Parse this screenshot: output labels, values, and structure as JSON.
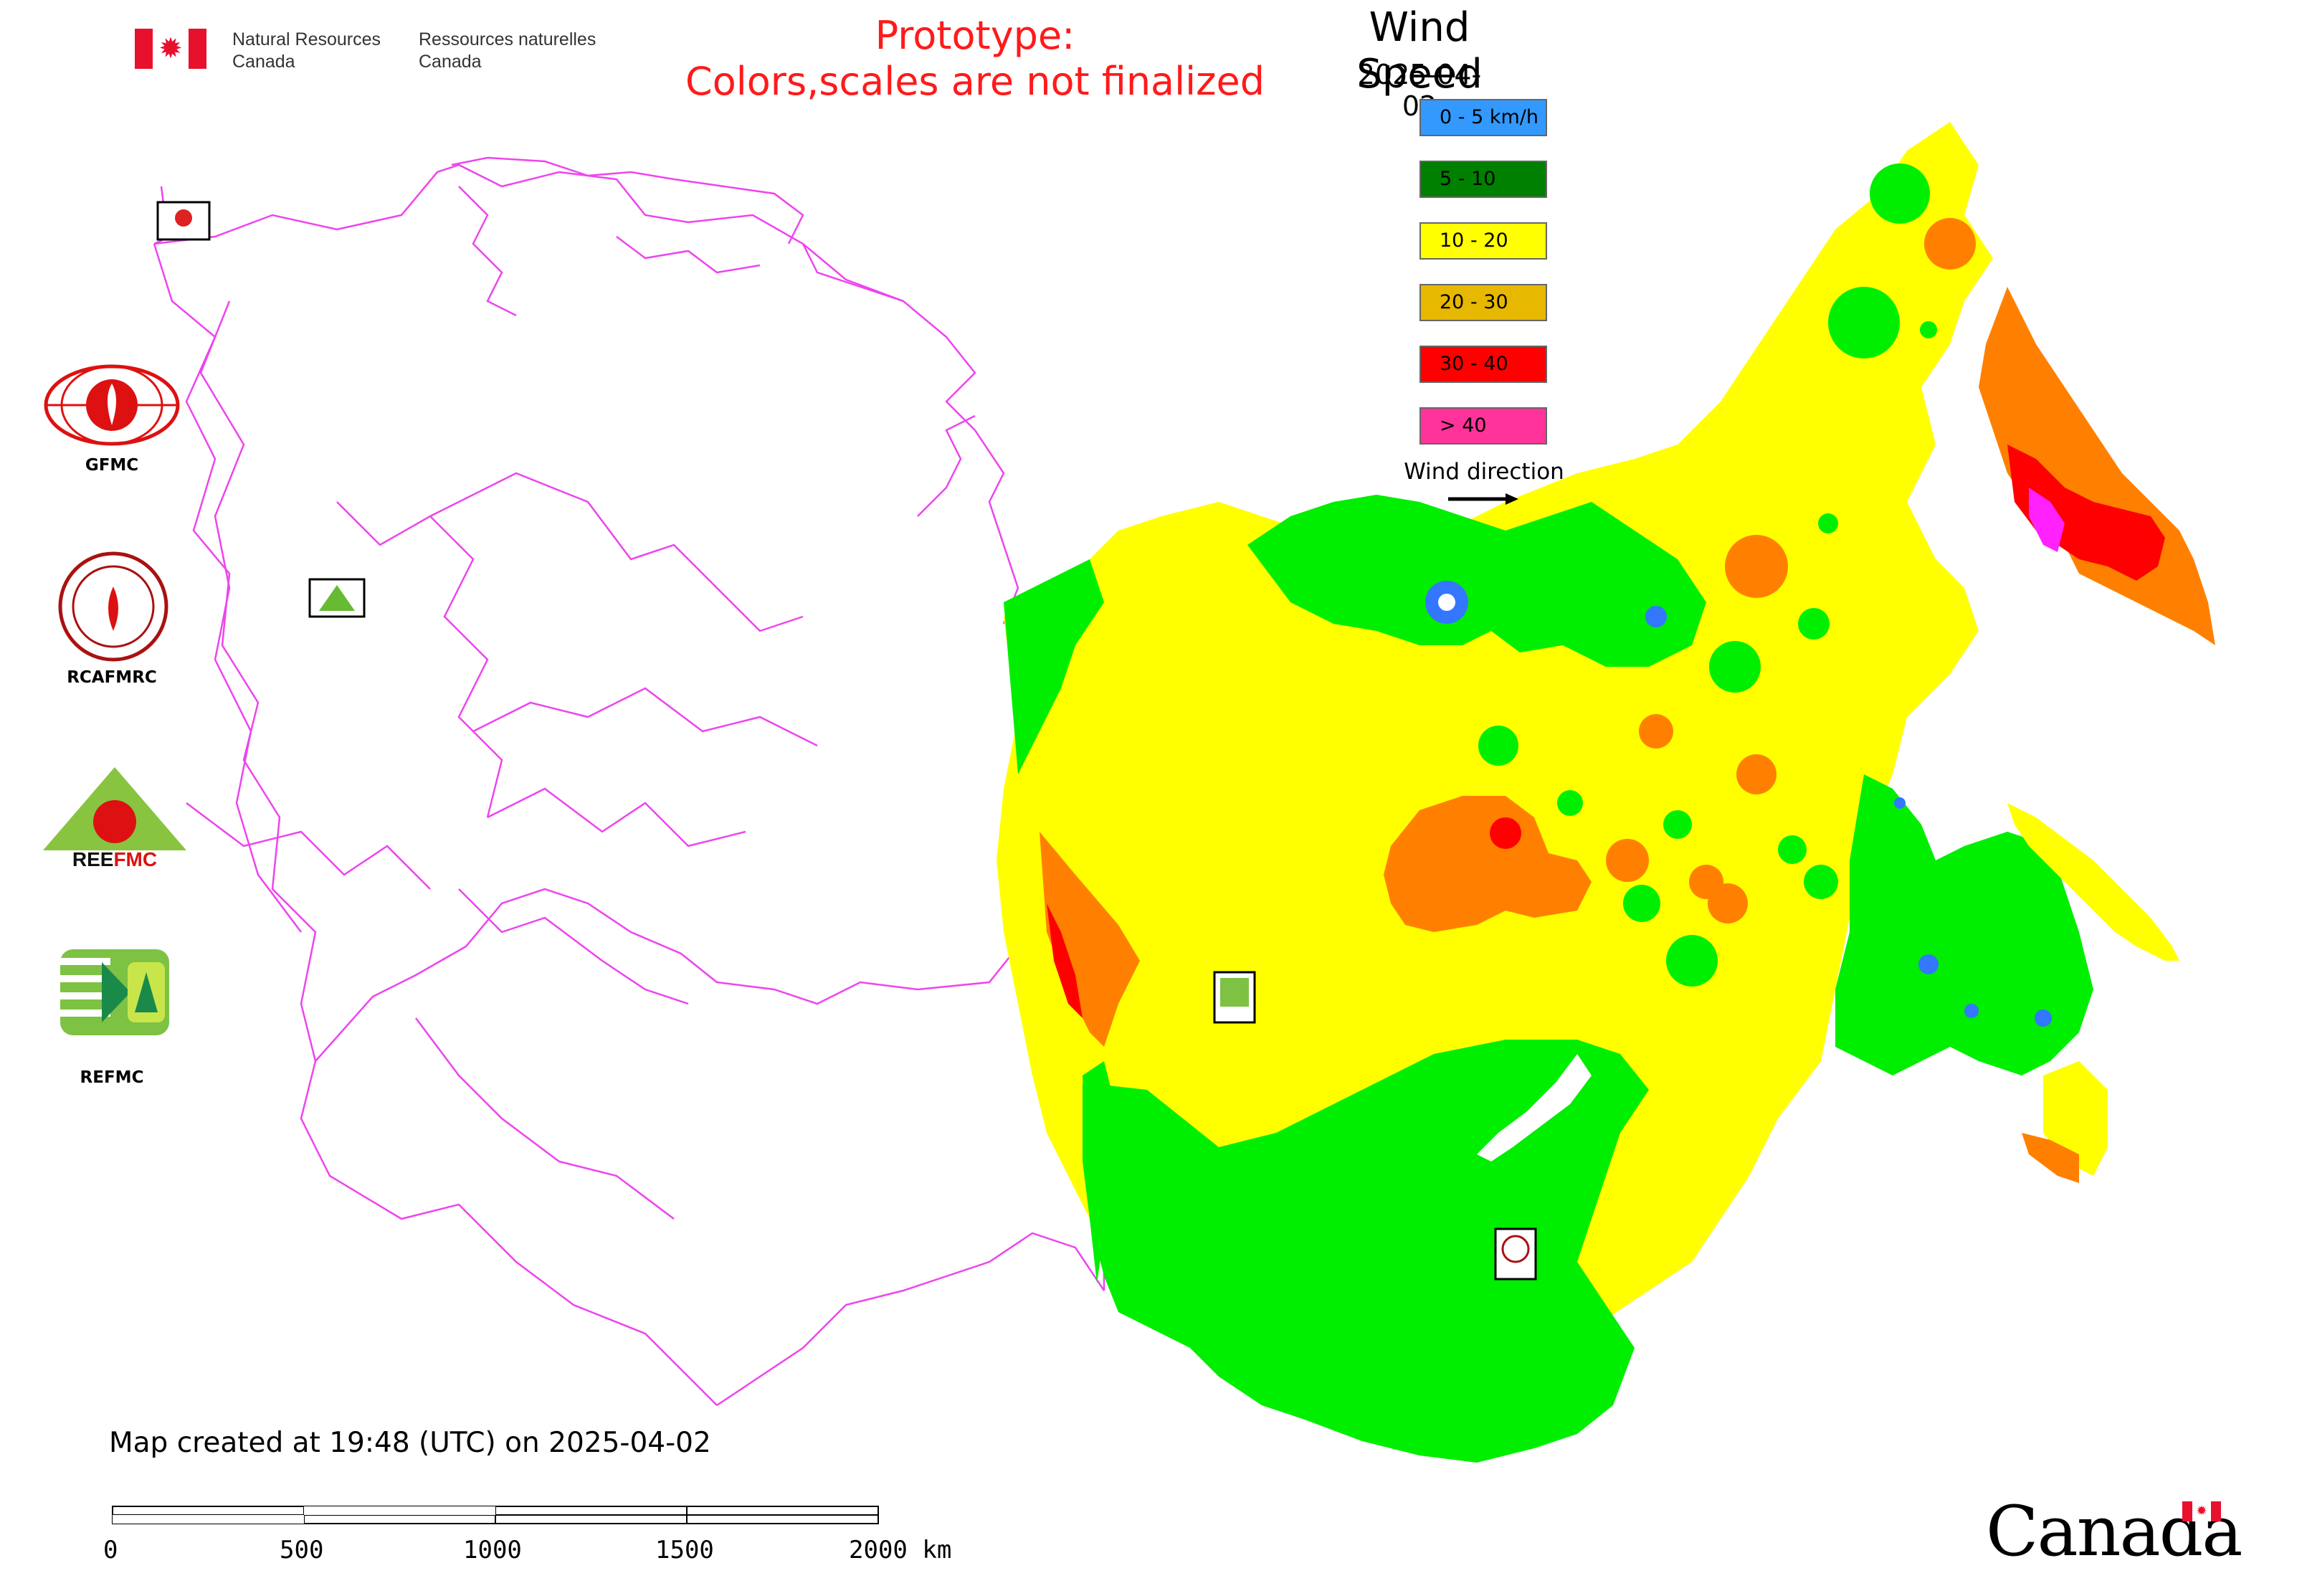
{
  "header": {
    "agency_en": "Natural Resources Canada",
    "agency_fr": "Ressources naturelles Canada",
    "prototype_line1": "Prototype:",
    "prototype_line2": "Colors,scales are not finalized"
  },
  "legend": {
    "title": "Wind Speed",
    "date": "2025-04-02",
    "items": [
      {
        "label": "0 - 5 km/h",
        "color": "#3399ff"
      },
      {
        "label": "5 - 10",
        "color": "#008000"
      },
      {
        "label": "10 - 20",
        "color": "#ffff00"
      },
      {
        "label": "20 - 30",
        "color": "#e6b800"
      },
      {
        "label": "30 - 40",
        "color": "#ff0000"
      },
      {
        "label": "> 40",
        "color": "#ff3399"
      }
    ],
    "wind_direction_label": "Wind direction"
  },
  "field_colors": {
    "light_green": "#00ee00",
    "yellow": "#ffff00",
    "orange": "#ff8000",
    "red": "#ff0000",
    "magenta": "#ff22ff",
    "blue": "#3377ff",
    "boundary": "#ee44ee"
  },
  "side_logos": [
    {
      "label": "GFMC",
      "icon": "gfmc-logo-icon"
    },
    {
      "label": "RCAFMRC",
      "icon": "rcafmrc-logo-icon"
    },
    {
      "label": "REEFMC",
      "icon": "reefmc-logo-icon"
    },
    {
      "label": "REFMC",
      "icon": "refmc-logo-icon"
    }
  ],
  "footer": {
    "map_created": "Map created at 19:48 (UTC) on 2025-04-02",
    "scale_labels": [
      "0",
      "500",
      "1000",
      "1500",
      "2000 km"
    ]
  },
  "wordmark": "Canada"
}
